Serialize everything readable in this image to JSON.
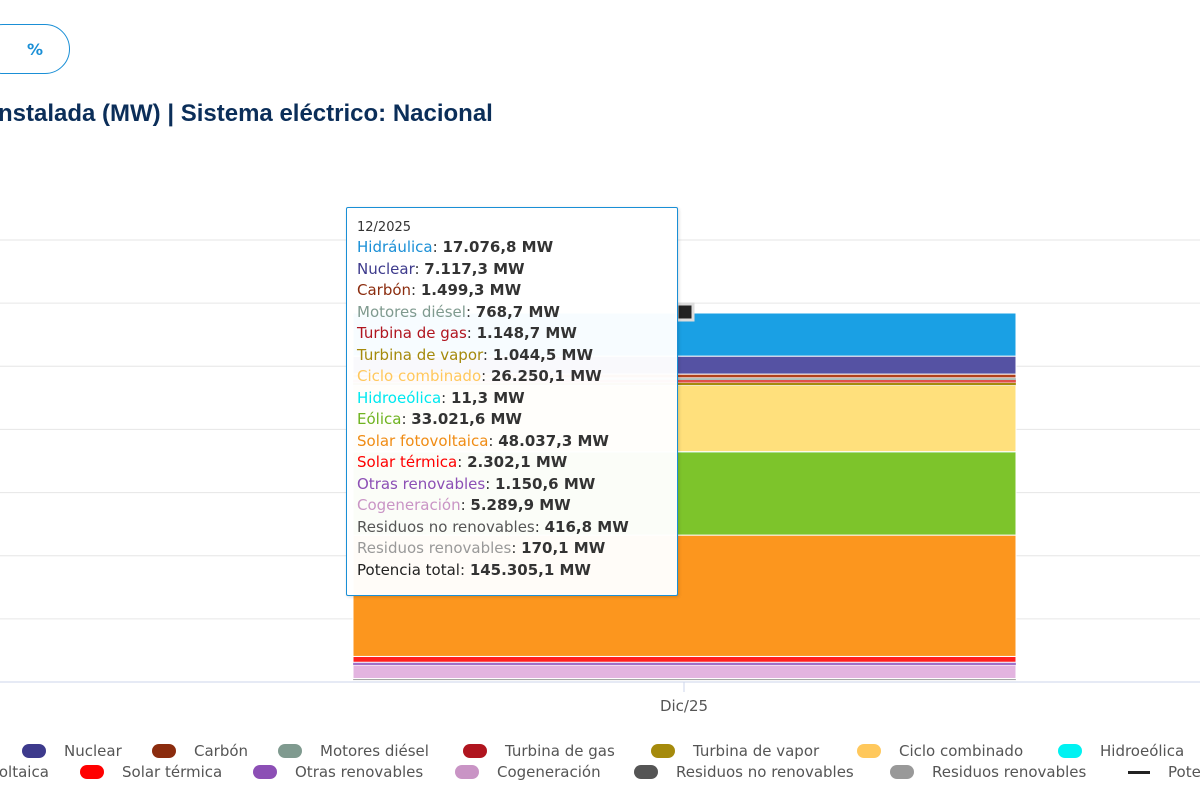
{
  "toolbar": {
    "percent_label": "%"
  },
  "title": "nstalada (MW) | Sistema eléctrico: Nacional",
  "tooltip": {
    "date": "12/2025",
    "rows": [
      {
        "label": "Hidráulica",
        "value": "17.076,8 MW",
        "color": "#1a8fd6"
      },
      {
        "label": "Nuclear",
        "value": "7.117,3 MW",
        "color": "#3d3a8c"
      },
      {
        "label": "Carbón",
        "value": "1.499,3 MW",
        "color": "#8b2c0e"
      },
      {
        "label": "Motores diésel",
        "value": "768,7 MW",
        "color": "#7f9a8f"
      },
      {
        "label": "Turbina de gas",
        "value": "1.148,7 MW",
        "color": "#b0151f"
      },
      {
        "label": "Turbina de vapor",
        "value": "1.044,5 MW",
        "color": "#a58a0c"
      },
      {
        "label": "Ciclo combinado",
        "value": "26.250,1 MW",
        "color": "#ffc85c"
      },
      {
        "label": "Hidroeólica",
        "value": "11,3 MW",
        "color": "#00e8f0"
      },
      {
        "label": "Eólica",
        "value": "33.021,6 MW",
        "color": "#6fb320"
      },
      {
        "label": "Solar fotovoltaica",
        "value": "48.037,3 MW",
        "color": "#f08c14"
      },
      {
        "label": "Solar térmica",
        "value": "2.302,1 MW",
        "color": "#ff0000"
      },
      {
        "label": "Otras renovables",
        "value": "1.150,6 MW",
        "color": "#8c4fb5"
      },
      {
        "label": "Cogeneración",
        "value": "5.289,9 MW",
        "color": "#c994c5"
      },
      {
        "label": "Residuos no renovables",
        "value": "416,8 MW",
        "color": "#555555"
      },
      {
        "label": "Residuos renovables",
        "value": "170,1 MW",
        "color": "#999999"
      },
      {
        "label": "Potencia total",
        "value": "145.305,1 MW",
        "color": "#222222"
      }
    ]
  },
  "chart_data": {
    "type": "bar",
    "stacked": true,
    "categories": [
      "Dic/25"
    ],
    "ylim": [
      0,
      175000
    ],
    "grid": true,
    "series": [
      {
        "name": "Hidráulica",
        "values": [
          17076.8
        ],
        "color": "#1aa0e4"
      },
      {
        "name": "Nuclear",
        "values": [
          7117.3
        ],
        "color": "#5552a3"
      },
      {
        "name": "Carbón",
        "values": [
          1499.3
        ],
        "color": "#b0401a"
      },
      {
        "name": "Motores diésel",
        "values": [
          768.7
        ],
        "color": "#7f9a8f"
      },
      {
        "name": "Turbina de gas",
        "values": [
          1148.7
        ],
        "color": "#e0504a"
      },
      {
        "name": "Turbina de vapor",
        "values": [
          1044.5
        ],
        "color": "#a58a0c"
      },
      {
        "name": "Ciclo combinado",
        "values": [
          26250.1
        ],
        "color": "#ffe07c"
      },
      {
        "name": "Hidroeólica",
        "values": [
          11.3
        ],
        "color": "#00f2f2"
      },
      {
        "name": "Eólica",
        "values": [
          33021.6
        ],
        "color": "#7dc42b"
      },
      {
        "name": "Solar fotovoltaica",
        "values": [
          48037.3
        ],
        "color": "#fc961e"
      },
      {
        "name": "Solar térmica",
        "values": [
          2302.1
        ],
        "color": "#ff1f1f"
      },
      {
        "name": "Otras renovables",
        "values": [
          1150.6
        ],
        "color": "#a070c8"
      },
      {
        "name": "Cogeneración",
        "values": [
          5289.9
        ],
        "color": "#e3b4e0"
      },
      {
        "name": "Residuos no renovables",
        "values": [
          416.8
        ],
        "color": "#555555"
      },
      {
        "name": "Residuos renovables",
        "values": [
          170.1
        ],
        "color": "#999999"
      }
    ],
    "total": {
      "name": "Potencia total",
      "values": [
        145305.1
      ],
      "color": "#222222"
    }
  },
  "legend": {
    "row1": [
      {
        "label": "Nuclear",
        "color": "#3d3a8c"
      },
      {
        "label": "Carbón",
        "color": "#8b2c0e"
      },
      {
        "label": "Motores diésel",
        "color": "#7f9a8f"
      },
      {
        "label": "Turbina de gas",
        "color": "#b0151f"
      },
      {
        "label": "Turbina de vapor",
        "color": "#a58a0c"
      },
      {
        "label": "Ciclo combinado",
        "color": "#ffc85c"
      },
      {
        "label": "Hidroeólica",
        "color": "#00f2f2"
      }
    ],
    "row2": [
      {
        "label": "voltaica",
        "color": ""
      },
      {
        "label": "Solar térmica",
        "color": "#ff0000"
      },
      {
        "label": "Otras renovables",
        "color": "#8c4fb5"
      },
      {
        "label": "Cogeneración",
        "color": "#c994c5"
      },
      {
        "label": "Residuos no renovables",
        "color": "#555555"
      },
      {
        "label": "Residuos renovables",
        "color": "#999999"
      },
      {
        "label": "Pote",
        "color": "#222222",
        "marker": "line"
      }
    ]
  }
}
